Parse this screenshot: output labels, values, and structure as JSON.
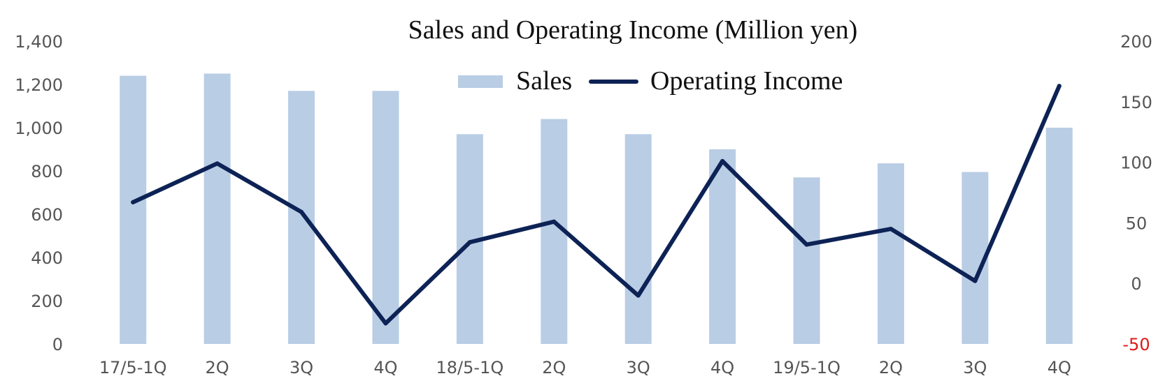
{
  "chart_data": {
    "type": "bar",
    "title": "Sales and Operating Income (Million yen)",
    "categories": [
      "17/5-1Q",
      "2Q",
      "3Q",
      "4Q",
      "18/5-1Q",
      "2Q",
      "3Q",
      "4Q",
      "19/5-1Q",
      "2Q",
      "3Q",
      "4Q"
    ],
    "series": [
      {
        "name": "Sales",
        "type": "bar",
        "axis": "left",
        "color": "#b9cde5",
        "values": [
          1240,
          1250,
          1170,
          1170,
          970,
          1040,
          970,
          900,
          770,
          835,
          795,
          1000
        ]
      },
      {
        "name": "Operating Income",
        "type": "line",
        "axis": "right",
        "color": "#0d2255",
        "values": [
          67,
          99,
          59,
          -33,
          34,
          51,
          -10,
          101,
          32,
          45,
          2,
          163
        ]
      }
    ],
    "y_left": {
      "min": 0,
      "max": 1400,
      "step": 200,
      "ticks": [
        "0",
        "200",
        "400",
        "600",
        "800",
        "1,000",
        "1,200",
        "1,400"
      ]
    },
    "y_right": {
      "min": -50,
      "max": 200,
      "step": 50,
      "ticks": [
        "-50",
        "0",
        "50",
        "100",
        "150",
        "200"
      ],
      "negative_color": "#e01818"
    },
    "grid": false,
    "legend_position": "top-center"
  }
}
